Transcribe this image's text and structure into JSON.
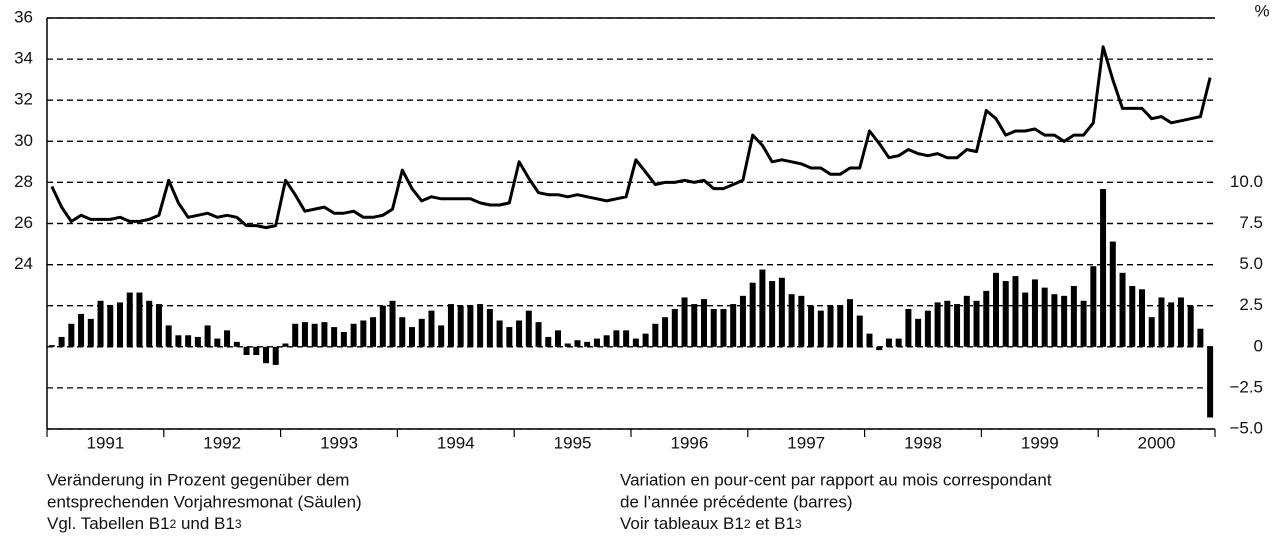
{
  "chart_data": {
    "type": "bar_line",
    "y2_unit": "%",
    "categories": [
      null,
      null,
      null,
      null,
      null,
      null,
      "1991",
      null,
      null,
      null,
      null,
      null,
      null,
      null,
      null,
      null,
      null,
      null,
      "1992",
      null,
      null,
      null,
      null,
      null,
      null,
      null,
      null,
      null,
      null,
      null,
      "1993",
      null,
      null,
      null,
      null,
      null,
      null,
      null,
      null,
      null,
      null,
      null,
      "1994",
      null,
      null,
      null,
      null,
      null,
      null,
      null,
      null,
      null,
      null,
      null,
      "1995",
      null,
      null,
      null,
      null,
      null,
      null,
      null,
      null,
      null,
      null,
      null,
      "1996",
      null,
      null,
      null,
      null,
      null,
      null,
      null,
      null,
      null,
      null,
      null,
      "1997",
      null,
      null,
      null,
      null,
      null,
      null,
      null,
      null,
      null,
      null,
      null,
      "1998",
      null,
      null,
      null,
      null,
      null,
      null,
      null,
      null,
      null,
      null,
      null,
      "1999",
      null,
      null,
      null,
      null,
      null,
      null,
      null,
      null,
      null,
      null,
      null,
      "2000",
      null,
      null,
      null,
      null,
      null
    ],
    "series": [
      {
        "type": "line",
        "color": "#000000",
        "values": [
          27.8,
          26.8,
          26.1,
          26.4,
          26.2,
          26.2,
          26.2,
          26.3,
          26.1,
          26.1,
          26.2,
          26.4,
          28.1,
          27.0,
          26.3,
          26.4,
          26.5,
          26.3,
          26.4,
          26.3,
          25.9,
          25.9,
          25.8,
          25.9,
          28.1,
          27.4,
          26.6,
          26.7,
          26.8,
          26.5,
          26.5,
          26.6,
          26.3,
          26.3,
          26.4,
          26.7,
          28.6,
          27.7,
          27.1,
          27.3,
          27.2,
          27.2,
          27.2,
          27.2,
          27.0,
          26.9,
          26.9,
          27.0,
          29.0,
          28.2,
          27.5,
          27.4,
          27.4,
          27.3,
          27.4,
          27.3,
          27.2,
          27.1,
          27.2,
          27.3,
          29.1,
          28.5,
          27.9,
          28.0,
          28.0,
          28.1,
          28.0,
          28.1,
          27.7,
          27.7,
          27.9,
          28.1,
          30.3,
          29.8,
          29.0,
          29.1,
          29.0,
          28.9,
          28.7,
          28.7,
          28.4,
          28.4,
          28.7,
          28.7,
          30.5,
          29.9,
          29.2,
          29.3,
          29.6,
          29.4,
          29.3,
          29.4,
          29.2,
          29.2,
          29.6,
          29.5,
          31.5,
          31.1,
          30.3,
          30.5,
          30.5,
          30.6,
          30.3,
          30.3,
          30.0,
          30.3,
          30.3,
          30.9,
          34.6,
          33.0,
          31.6,
          31.6,
          31.6,
          31.1,
          31.2,
          30.9,
          31.0,
          31.1,
          31.2,
          33.1
        ]
      },
      {
        "type": "bar",
        "axis": "y2",
        "color": "#000000",
        "values": [
          0.1,
          0.6,
          1.4,
          2.0,
          1.7,
          2.8,
          2.5,
          2.7,
          3.3,
          3.3,
          2.8,
          2.6,
          1.3,
          0.7,
          0.7,
          0.6,
          1.3,
          0.5,
          1.0,
          0.3,
          -0.5,
          -0.5,
          -1.0,
          -1.1,
          0.2,
          1.4,
          1.5,
          1.4,
          1.5,
          1.2,
          0.9,
          1.4,
          1.6,
          1.8,
          2.5,
          2.8,
          1.8,
          1.2,
          1.7,
          2.2,
          1.3,
          2.6,
          2.5,
          2.5,
          2.6,
          2.3,
          1.6,
          1.2,
          1.6,
          2.2,
          1.5,
          0.6,
          1.0,
          0.2,
          0.4,
          0.3,
          0.5,
          0.7,
          1.0,
          1.0,
          0.5,
          0.8,
          1.4,
          1.8,
          2.3,
          3.0,
          2.6,
          2.9,
          2.3,
          2.3,
          2.6,
          3.1,
          3.9,
          4.7,
          4.0,
          4.2,
          3.2,
          3.1,
          2.5,
          2.2,
          2.5,
          2.5,
          2.9,
          1.9,
          0.8,
          -0.2,
          0.5,
          0.5,
          2.3,
          1.7,
          2.2,
          2.7,
          2.8,
          2.6,
          3.1,
          2.8,
          3.4,
          4.5,
          4.0,
          4.3,
          3.3,
          4.1,
          3.6,
          3.2,
          3.1,
          3.7,
          2.8,
          4.9,
          9.6,
          6.4,
          4.5,
          3.7,
          3.5,
          1.8,
          3.0,
          2.7,
          3.0,
          2.5,
          1.1,
          -4.3
        ]
      }
    ],
    "ylim": [
      16,
      36
    ],
    "yticks": [
      24,
      26,
      28,
      30,
      32,
      34,
      36
    ],
    "y2lim": [
      -5,
      20
    ],
    "y2ticks": [
      {
        "value": -5,
        "label": "−5.0"
      },
      {
        "value": -2.5,
        "label": "−2.5"
      },
      0,
      2.5,
      {
        "value": 5,
        "label": "5.0"
      },
      7.5,
      {
        "value": 10,
        "label": "10.0"
      }
    ],
    "grid": true,
    "notes_left": [
      "Veränderung in Prozent gegenüber dem",
      "entsprechenden Vorjahresmonat (Säulen)",
      [
        "Vgl. Tabellen B1",
        "2",
        " und B1",
        "3"
      ]
    ],
    "notes_right": [
      "Variation en pour-cent par rapport au mois correspondant",
      "de l’année précédente (barres)",
      [
        "Voir tableaux B1",
        "2",
        " et B1",
        "3"
      ]
    ]
  }
}
